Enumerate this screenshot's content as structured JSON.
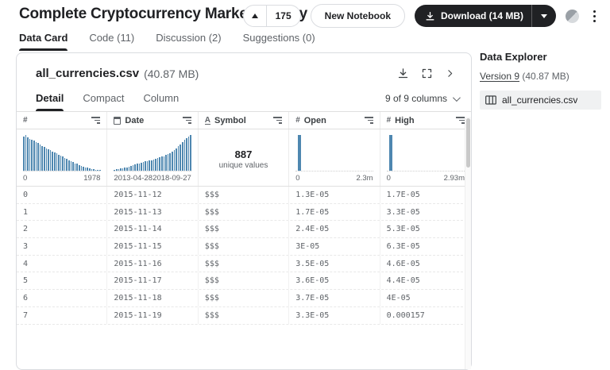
{
  "header": {
    "title": "Complete Cryptocurrency Market History",
    "upvote_count": "175",
    "new_notebook_label": "New Notebook",
    "download_label": "Download (14 MB)"
  },
  "tabs": [
    {
      "label": "Data Card",
      "active": true
    },
    {
      "label": "Code (11)",
      "active": false
    },
    {
      "label": "Discussion (2)",
      "active": false
    },
    {
      "label": "Suggestions (0)",
      "active": false
    }
  ],
  "card": {
    "file_name": "all_currencies.csv",
    "file_size": "(40.87 MB)",
    "view_tabs": [
      "Detail",
      "Compact",
      "Column"
    ],
    "columns_selector": "9 of 9 columns"
  },
  "table": {
    "accent_color": "#4e87b0",
    "columns": [
      {
        "label": "",
        "type": "number",
        "hist_bars": [
          96,
          100,
          94,
          90,
          87,
          84,
          80,
          77,
          73,
          70,
          66,
          63,
          60,
          57,
          54,
          51,
          48,
          45,
          42,
          39,
          36,
          33,
          30,
          27,
          24,
          21,
          19,
          16,
          14,
          12,
          10,
          8,
          7,
          5,
          4,
          3,
          3,
          2
        ],
        "min_label": "0",
        "max_label": "1978"
      },
      {
        "label": "Date",
        "type": "date",
        "hist_bars": [
          3,
          4,
          5,
          6,
          7,
          8,
          10,
          12,
          14,
          16,
          17,
          19,
          21,
          23,
          24,
          26,
          27,
          29,
          30,
          32,
          33,
          35,
          37,
          39,
          41,
          44,
          47,
          50,
          54,
          58,
          63,
          68,
          74,
          80,
          86,
          91,
          96,
          100
        ],
        "min_label": "2013-04-28",
        "max_label": "2018-09-27"
      },
      {
        "label": "Symbol",
        "type": "string",
        "unique_count": "887",
        "unique_label": "unique values"
      },
      {
        "label": "Open",
        "type": "number",
        "hist_bars": [
          100
        ],
        "min_label": "0",
        "max_label": "2.3m"
      },
      {
        "label": "High",
        "type": "number",
        "hist_bars": [
          100
        ],
        "min_label": "0",
        "max_label": "2.93m"
      }
    ],
    "rows": [
      [
        "0",
        "2015-11-12",
        "$$$",
        "1.3E-05",
        "1.7E-05"
      ],
      [
        "1",
        "2015-11-13",
        "$$$",
        "1.7E-05",
        "3.3E-05"
      ],
      [
        "2",
        "2015-11-14",
        "$$$",
        "2.4E-05",
        "5.3E-05"
      ],
      [
        "3",
        "2015-11-15",
        "$$$",
        "3E-05",
        "6.3E-05"
      ],
      [
        "4",
        "2015-11-16",
        "$$$",
        "3.5E-05",
        "4.6E-05"
      ],
      [
        "5",
        "2015-11-17",
        "$$$",
        "3.6E-05",
        "4.4E-05"
      ],
      [
        "6",
        "2015-11-18",
        "$$$",
        "3.7E-05",
        "4E-05"
      ],
      [
        "7",
        "2015-11-19",
        "$$$",
        "3.3E-05",
        "0.000157"
      ]
    ]
  },
  "sidebar": {
    "title": "Data Explorer",
    "version_label": "Version 9",
    "version_size": "(40.87 MB)",
    "file_name": "all_currencies.csv"
  }
}
